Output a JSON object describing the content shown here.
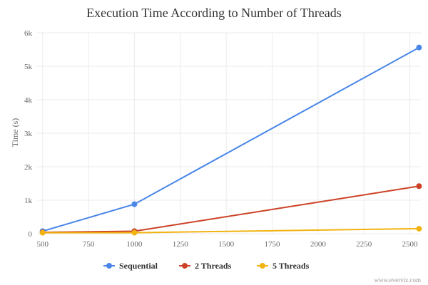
{
  "chart_data": {
    "type": "line",
    "title": "Execution Time According to Number of Threads",
    "ylabel": "Time (s)",
    "xlabel": "",
    "xlim": [
      470,
      2560
    ],
    "ylim": [
      0,
      6000
    ],
    "x_ticks": [
      500,
      750,
      1000,
      1250,
      1500,
      1750,
      2000,
      2250,
      2500
    ],
    "y_ticks": [
      {
        "value": 0,
        "label": "0"
      },
      {
        "value": 1000,
        "label": "1k"
      },
      {
        "value": 2000,
        "label": "2k"
      },
      {
        "value": 3000,
        "label": "3k"
      },
      {
        "value": 4000,
        "label": "4k"
      },
      {
        "value": 5000,
        "label": "5k"
      },
      {
        "value": 6000,
        "label": "6k"
      }
    ],
    "grid": true,
    "legend_position": "bottom-center",
    "series": [
      {
        "name": "Sequential",
        "color": "#4a86e8",
        "points": [
          [
            500,
            75
          ],
          [
            1000,
            880
          ],
          [
            2550,
            5560
          ]
        ]
      },
      {
        "name": "2 Threads",
        "color": "#cc4125",
        "points": [
          [
            500,
            40
          ],
          [
            1000,
            75
          ],
          [
            2550,
            1420
          ]
        ]
      },
      {
        "name": "5 Threads",
        "color": "#f1b310",
        "points": [
          [
            500,
            30
          ],
          [
            1000,
            30
          ],
          [
            2550,
            150
          ]
        ]
      }
    ]
  },
  "credit": "www.everviz.com"
}
